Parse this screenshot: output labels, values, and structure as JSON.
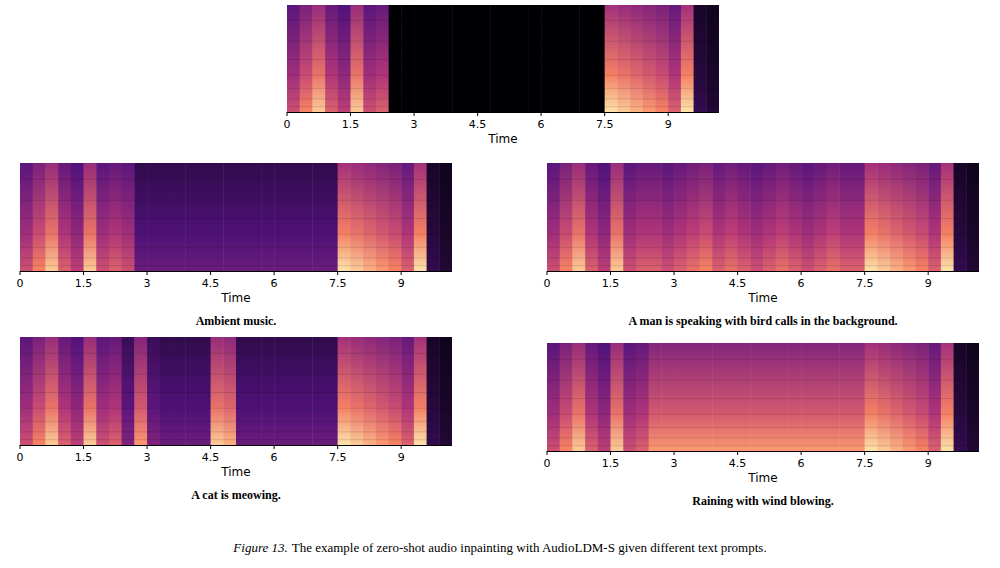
{
  "chart_data": [
    {
      "type": "spectrogram",
      "xlabel": "Time",
      "xlim": [
        0,
        10.2
      ],
      "xticks": [
        0,
        1.5,
        3,
        4.5,
        6,
        7.5,
        9
      ],
      "bins": [
        0,
        0.3,
        0.6,
        0.9,
        1.2,
        1.5,
        1.8,
        2.1,
        2.4,
        2.7,
        3,
        3.3,
        3.6,
        3.9,
        4.2,
        4.5,
        4.8,
        5.1,
        5.4,
        5.7,
        6,
        6.3,
        6.6,
        6.9,
        7.2,
        7.5,
        7.8,
        8.1,
        8.4,
        8.7,
        9,
        9.3,
        9.6,
        9.9,
        10.2
      ],
      "values": [
        0.55,
        0.7,
        0.85,
        0.6,
        0.5,
        0.85,
        0.55,
        0.6,
        0,
        0,
        0,
        0,
        0,
        0,
        0,
        0,
        0,
        0,
        0,
        0,
        0,
        0,
        0,
        0,
        0,
        0.9,
        0.85,
        0.8,
        0.75,
        0.7,
        0.6,
        0.9,
        0.15,
        0.1
      ]
    },
    {
      "type": "spectrogram",
      "title": "Ambient music.",
      "xlabel": "Time",
      "xlim": [
        0,
        10.2
      ],
      "xticks": [
        0,
        1.5,
        3,
        4.5,
        6,
        7.5,
        9
      ],
      "bins": [
        0,
        0.3,
        0.6,
        0.9,
        1.2,
        1.5,
        1.8,
        2.1,
        2.4,
        2.7,
        3,
        3.3,
        3.6,
        3.9,
        4.2,
        4.5,
        4.8,
        5.1,
        5.4,
        5.7,
        6,
        6.3,
        6.6,
        6.9,
        7.2,
        7.5,
        7.8,
        8.1,
        8.4,
        8.7,
        9,
        9.3,
        9.6,
        9.9,
        10.2
      ],
      "values": [
        0.55,
        0.7,
        0.85,
        0.6,
        0.5,
        0.85,
        0.55,
        0.6,
        0.55,
        0.3,
        0.3,
        0.3,
        0.3,
        0.3,
        0.3,
        0.3,
        0.3,
        0.3,
        0.3,
        0.3,
        0.3,
        0.3,
        0.3,
        0.3,
        0.3,
        0.9,
        0.85,
        0.8,
        0.75,
        0.7,
        0.6,
        0.9,
        0.15,
        0.1
      ]
    },
    {
      "type": "spectrogram",
      "title": "A man is speaking with bird calls in the background.",
      "xlabel": "Time",
      "xlim": [
        0,
        10.2
      ],
      "xticks": [
        0,
        1.5,
        3,
        4.5,
        6,
        7.5,
        9
      ],
      "bins": [
        0,
        0.3,
        0.6,
        0.9,
        1.2,
        1.5,
        1.8,
        2.1,
        2.4,
        2.7,
        3,
        3.3,
        3.6,
        3.9,
        4.2,
        4.5,
        4.8,
        5.1,
        5.4,
        5.7,
        6,
        6.3,
        6.6,
        6.9,
        7.2,
        7.5,
        7.8,
        8.1,
        8.4,
        8.7,
        9,
        9.3,
        9.6,
        9.9,
        10.2
      ],
      "values": [
        0.55,
        0.7,
        0.85,
        0.6,
        0.5,
        0.85,
        0.55,
        0.6,
        0.6,
        0.55,
        0.6,
        0.65,
        0.7,
        0.6,
        0.65,
        0.6,
        0.55,
        0.6,
        0.65,
        0.6,
        0.55,
        0.6,
        0.65,
        0.6,
        0.6,
        0.9,
        0.85,
        0.8,
        0.75,
        0.7,
        0.6,
        0.9,
        0.15,
        0.1
      ]
    },
    {
      "type": "spectrogram",
      "title": "A cat is meowing.",
      "xlabel": "Time",
      "xlim": [
        0,
        10.2
      ],
      "xticks": [
        0,
        1.5,
        3,
        4.5,
        6,
        7.5,
        9
      ],
      "bins": [
        0,
        0.3,
        0.6,
        0.9,
        1.2,
        1.5,
        1.8,
        2.1,
        2.4,
        2.7,
        3,
        3.3,
        3.6,
        3.9,
        4.2,
        4.5,
        4.8,
        5.1,
        5.4,
        5.7,
        6,
        6.3,
        6.6,
        6.9,
        7.2,
        7.5,
        7.8,
        8.1,
        8.4,
        8.7,
        9,
        9.3,
        9.6,
        9.9,
        10.2
      ],
      "values": [
        0.55,
        0.7,
        0.85,
        0.6,
        0.5,
        0.85,
        0.55,
        0.6,
        0.35,
        0.75,
        0.35,
        0.3,
        0.3,
        0.3,
        0.3,
        0.85,
        0.8,
        0.3,
        0.3,
        0.3,
        0.3,
        0.3,
        0.3,
        0.3,
        0.3,
        0.9,
        0.85,
        0.8,
        0.75,
        0.7,
        0.6,
        0.9,
        0.15,
        0.1
      ]
    },
    {
      "type": "spectrogram",
      "title": "Raining with wind blowing.",
      "xlabel": "Time",
      "xlim": [
        0,
        10.2
      ],
      "xticks": [
        0,
        1.5,
        3,
        4.5,
        6,
        7.5,
        9
      ],
      "bins": [
        0,
        0.3,
        0.6,
        0.9,
        1.2,
        1.5,
        1.8,
        2.1,
        2.4,
        2.7,
        3,
        3.3,
        3.6,
        3.9,
        4.2,
        4.5,
        4.8,
        5.1,
        5.4,
        5.7,
        6,
        6.3,
        6.6,
        6.9,
        7.2,
        7.5,
        7.8,
        8.1,
        8.4,
        8.7,
        9,
        9.3,
        9.6,
        9.9,
        10.2
      ],
      "values": [
        0.55,
        0.7,
        0.85,
        0.6,
        0.5,
        0.85,
        0.55,
        0.6,
        0.75,
        0.75,
        0.75,
        0.75,
        0.75,
        0.75,
        0.75,
        0.75,
        0.75,
        0.75,
        0.75,
        0.75,
        0.75,
        0.75,
        0.75,
        0.75,
        0.75,
        0.9,
        0.85,
        0.8,
        0.75,
        0.7,
        0.6,
        0.9,
        0.15,
        0.1
      ]
    }
  ],
  "caption": {
    "label": "Figure 13.",
    "text": "The example of zero-shot audio inpainting with AudioLDM-S given different text prompts."
  }
}
